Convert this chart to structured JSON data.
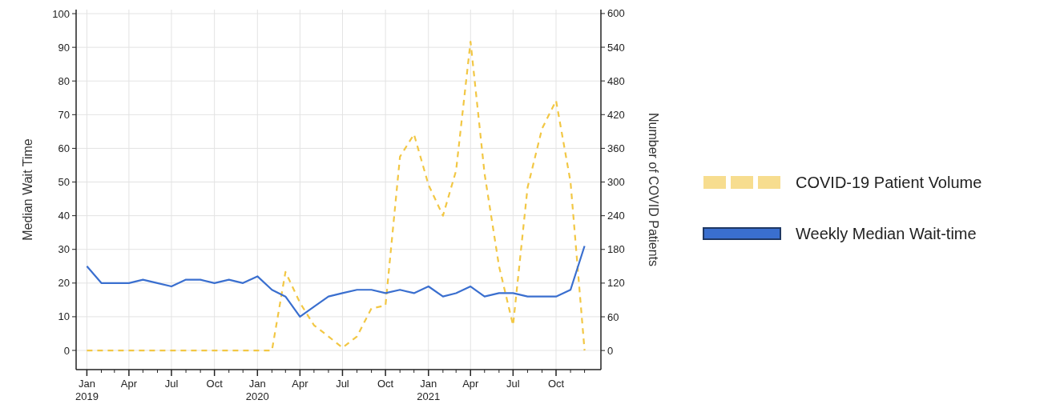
{
  "chart_data": {
    "type": "line",
    "ylabel": "Median Wait Time",
    "y2label": "Number of COVID Patients",
    "x": [
      "2019-01",
      "2019-02",
      "2019-03",
      "2019-04",
      "2019-05",
      "2019-06",
      "2019-07",
      "2019-08",
      "2019-09",
      "2019-10",
      "2019-11",
      "2019-12",
      "2020-01",
      "2020-02",
      "2020-03",
      "2020-04",
      "2020-05",
      "2020-06",
      "2020-07",
      "2020-08",
      "2020-09",
      "2020-10",
      "2020-11",
      "2020-12",
      "2021-01",
      "2021-02",
      "2021-03",
      "2021-04",
      "2021-05",
      "2021-06",
      "2021-07",
      "2021-08",
      "2021-09",
      "2021-10",
      "2021-11",
      "2021-12"
    ],
    "series": [
      {
        "name": "COVID-19 Patient Volume",
        "color": "#f2c744",
        "axis": "y2",
        "line_style": "dashed",
        "values": [
          0,
          0,
          0,
          0,
          0,
          0,
          0,
          0,
          0,
          0,
          0,
          0,
          0,
          0,
          140,
          85,
          45,
          25,
          5,
          25,
          75,
          80,
          345,
          385,
          295,
          240,
          320,
          550,
          315,
          150,
          45,
          290,
          395,
          445,
          300,
          0
        ]
      },
      {
        "name": "Weekly Median Wait-time",
        "color": "#3a6fcf",
        "line_style": "solid",
        "values": [
          25,
          20,
          20,
          20,
          21,
          20,
          19,
          21,
          21,
          20,
          21,
          20,
          22,
          18,
          16,
          10,
          13,
          16,
          17,
          18,
          18,
          17,
          18,
          17,
          19,
          16,
          17,
          19,
          16,
          17,
          17,
          16,
          16,
          16,
          18,
          31
        ]
      }
    ],
    "xlim": [
      "2018-12-09",
      "2022-01-05"
    ],
    "xticks": [
      {
        "value": "2019-01",
        "label": "Jan 2019"
      },
      {
        "value": "2019-02",
        "label": null
      },
      {
        "value": "2019-03",
        "label": null
      },
      {
        "value": "2019-04",
        "label": "Apr"
      },
      {
        "value": "2019-05",
        "label": null
      },
      {
        "value": "2019-06",
        "label": null
      },
      {
        "value": "2019-07",
        "label": "Jul"
      },
      {
        "value": "2019-08",
        "label": null
      },
      {
        "value": "2019-09",
        "label": null
      },
      {
        "value": "2019-10",
        "label": "Oct"
      },
      {
        "value": "2019-11",
        "label": null
      },
      {
        "value": "2019-12",
        "label": null
      },
      {
        "value": "2020-01",
        "label": "Jan 2020"
      },
      {
        "value": "2020-02",
        "label": null
      },
      {
        "value": "2020-03",
        "label": null
      },
      {
        "value": "2020-04",
        "label": "Apr"
      },
      {
        "value": "2020-05",
        "label": null
      },
      {
        "value": "2020-06",
        "label": null
      },
      {
        "value": "2020-07",
        "label": "Jul"
      },
      {
        "value": "2020-08",
        "label": null
      },
      {
        "value": "2020-09",
        "label": null
      },
      {
        "value": "2020-10",
        "label": "Oct"
      },
      {
        "value": "2020-11",
        "label": null
      },
      {
        "value": "2020-12",
        "label": null
      },
      {
        "value": "2021-01",
        "label": "Jan 2021"
      },
      {
        "value": "2021-02",
        "label": null
      },
      {
        "value": "2021-03",
        "label": null
      },
      {
        "value": "2021-04",
        "label": "Apr"
      },
      {
        "value": "2021-05",
        "label": null
      },
      {
        "value": "2021-06",
        "label": null
      },
      {
        "value": "2021-07",
        "label": "Jul"
      },
      {
        "value": "2021-08",
        "label": null
      },
      {
        "value": "2021-09",
        "label": null
      },
      {
        "value": "2021-10",
        "label": "Oct"
      },
      {
        "value": "2021-11",
        "label": null
      },
      {
        "value": "2021-12",
        "label": null
      }
    ],
    "ylim": [
      -5.7,
      101.2
    ],
    "yticks": [
      0,
      10,
      20,
      30,
      40,
      50,
      60,
      70,
      80,
      90,
      100
    ],
    "y2lim": [
      -34,
      607
    ],
    "y2ticks": [
      0,
      60,
      120,
      180,
      240,
      300,
      360,
      420,
      480,
      540,
      600
    ],
    "grid": true,
    "legend": "right"
  }
}
